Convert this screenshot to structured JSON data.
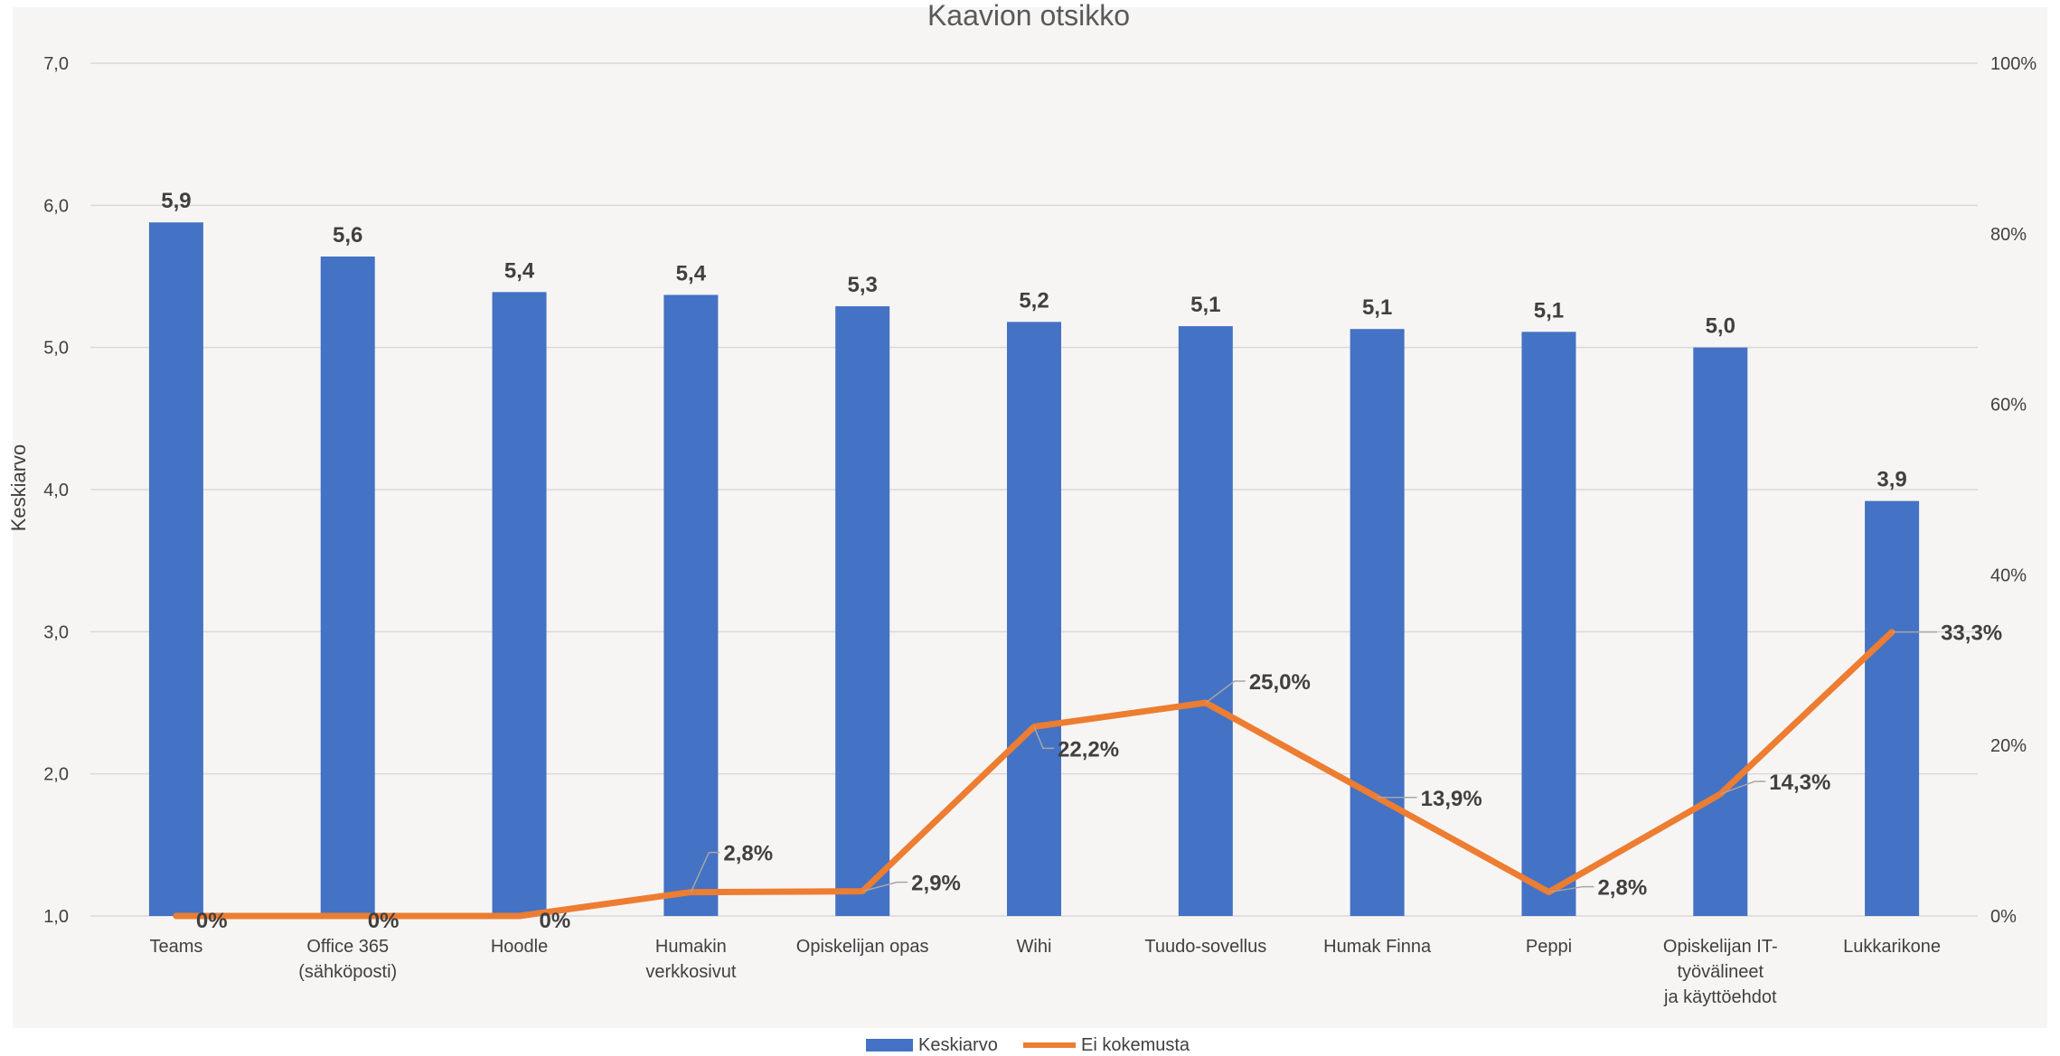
{
  "chart_data": {
    "type": "bar",
    "title": "Kaavion otsikko",
    "ylabel": "Keskiarvo",
    "ylim": [
      1.0,
      7.0
    ],
    "yticks": [
      "1,0",
      "2,0",
      "3,0",
      "4,0",
      "5,0",
      "6,0",
      "7,0"
    ],
    "y2lim": [
      0,
      100
    ],
    "y2ticks": [
      "0%",
      "20%",
      "40%",
      "60%",
      "80%",
      "100%"
    ],
    "grid": true,
    "legend_position": "bottom",
    "categories": [
      "Teams",
      "Office 365 (sähköposti)",
      "Hoodle",
      "Humakin verkkosivut",
      "Opiskelijan opas",
      "Wihi",
      "Tuudo-sovellus",
      "Humak Finna",
      "Peppi",
      "Opiskelijan IT-työvälineet ja käyttöehdot",
      "Lukkarikone"
    ],
    "category_lines": [
      [
        "Teams"
      ],
      [
        "Office 365",
        "(sähköposti)"
      ],
      [
        "Hoodle"
      ],
      [
        "Humakin",
        "verkkosivut"
      ],
      [
        "Opiskelijan opas"
      ],
      [
        "Wihi"
      ],
      [
        "Tuudo-sovellus"
      ],
      [
        "Humak Finna"
      ],
      [
        "Peppi"
      ],
      [
        "Opiskelijan IT-",
        "työvälineet",
        "ja käyttöehdot"
      ],
      [
        "Lukkarikone"
      ]
    ],
    "series": [
      {
        "name": "Keskiarvo",
        "type": "bar",
        "axis": "left",
        "color": "#4472C4",
        "values": [
          5.88,
          5.64,
          5.39,
          5.37,
          5.29,
          5.18,
          5.15,
          5.13,
          5.11,
          5.0,
          3.92
        ],
        "labels": [
          "5,9",
          "5,6",
          "5,4",
          "5,4",
          "5,3",
          "5,2",
          "5,1",
          "5,1",
          "5,1",
          "5,0",
          "3,9"
        ]
      },
      {
        "name": "Ei kokemusta",
        "type": "line",
        "axis": "right",
        "color": "#ED7D31",
        "values": [
          0,
          0,
          0,
          2.8,
          2.9,
          22.2,
          25.0,
          13.9,
          2.8,
          14.3,
          33.3
        ],
        "labels": [
          "0%",
          "0%",
          "0%",
          "2,8%",
          "2,9%",
          "22,2%",
          "25,0%",
          "13,9%",
          "2,8%",
          "14,3%",
          "33,3%"
        ]
      }
    ]
  },
  "colors": {
    "plot_background": "#F7F5F4",
    "gridline": "#D9D9D9",
    "text": "#404040",
    "leader_line": "#A6A6A6"
  }
}
